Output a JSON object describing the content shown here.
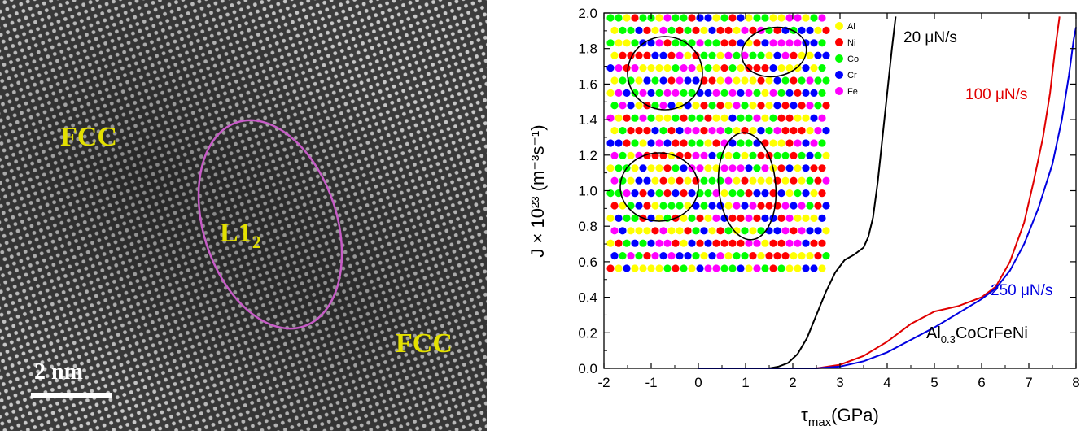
{
  "micrograph": {
    "labels": [
      "FCC",
      "L1",
      "2",
      "FCC"
    ],
    "scale_bar": "2 nm",
    "colors": {
      "label": "#e3e000",
      "ellipse": "#c85cc8",
      "scale": "#ffffff"
    }
  },
  "chart_data": {
    "type": "line",
    "xlabel_main": "τ",
    "xlabel_sub": "max",
    "xlabel_rest": "(GPa)",
    "ylabel": "J × 10²³ (m⁻³s⁻¹)",
    "xlim": [
      -2,
      8
    ],
    "ylim": [
      0,
      2.0
    ],
    "x_ticks": [
      "-2",
      "-1",
      "0",
      "1",
      "2",
      "3",
      "4",
      "5",
      "6",
      "7",
      "8"
    ],
    "y_ticks": [
      "0.0",
      "0.2",
      "0.4",
      "0.6",
      "0.8",
      "1.0",
      "1.2",
      "1.4",
      "1.6",
      "1.8",
      "2.0"
    ],
    "series": [
      {
        "name": "20 μN/s",
        "color": "#000000",
        "x": [
          0,
          1.5,
          1.7,
          1.9,
          2.1,
          2.3,
          2.5,
          2.7,
          2.9,
          3.1,
          3.3,
          3.5,
          3.6,
          3.7,
          3.8,
          3.9,
          4.0,
          4.1,
          4.18
        ],
        "y": [
          0,
          0,
          0.01,
          0.03,
          0.08,
          0.17,
          0.3,
          0.43,
          0.54,
          0.61,
          0.64,
          0.68,
          0.74,
          0.85,
          1.05,
          1.3,
          1.55,
          1.8,
          1.98
        ]
      },
      {
        "name": "100 μN/s",
        "color": "#e00000",
        "x": [
          0,
          2.5,
          3.0,
          3.5,
          4.0,
          4.5,
          5.0,
          5.5,
          6.0,
          6.3,
          6.6,
          6.9,
          7.1,
          7.3,
          7.45,
          7.55,
          7.65
        ],
        "y": [
          0,
          0,
          0.02,
          0.07,
          0.15,
          0.25,
          0.32,
          0.35,
          0.4,
          0.46,
          0.6,
          0.82,
          1.05,
          1.3,
          1.55,
          1.78,
          1.98
        ]
      },
      {
        "name": "250 μN/s",
        "color": "#0000e0",
        "x": [
          0,
          2.5,
          3.0,
          3.5,
          4.0,
          4.5,
          5.0,
          5.5,
          6.0,
          6.3,
          6.6,
          6.9,
          7.2,
          7.5,
          7.7,
          7.85,
          7.95,
          8.0
        ],
        "y": [
          0,
          0,
          0.01,
          0.04,
          0.09,
          0.16,
          0.23,
          0.31,
          0.39,
          0.45,
          0.55,
          0.7,
          0.9,
          1.15,
          1.4,
          1.65,
          1.85,
          1.92
        ]
      }
    ],
    "annotations": {
      "a20": "20 μN/s",
      "a100": "100 μN/s",
      "a250": "250 μN/s",
      "alloy_a": "Al",
      "alloy_b": "0.3",
      "alloy_c": "CoCrFeNi"
    },
    "inset_legend": [
      {
        "name": "Al",
        "color": "#ffff00"
      },
      {
        "name": "Ni",
        "color": "#ff0000"
      },
      {
        "name": "Co",
        "color": "#00ff00"
      },
      {
        "name": "Cr",
        "color": "#0000ff"
      },
      {
        "name": "Fe",
        "color": "#ff00ff"
      }
    ]
  }
}
